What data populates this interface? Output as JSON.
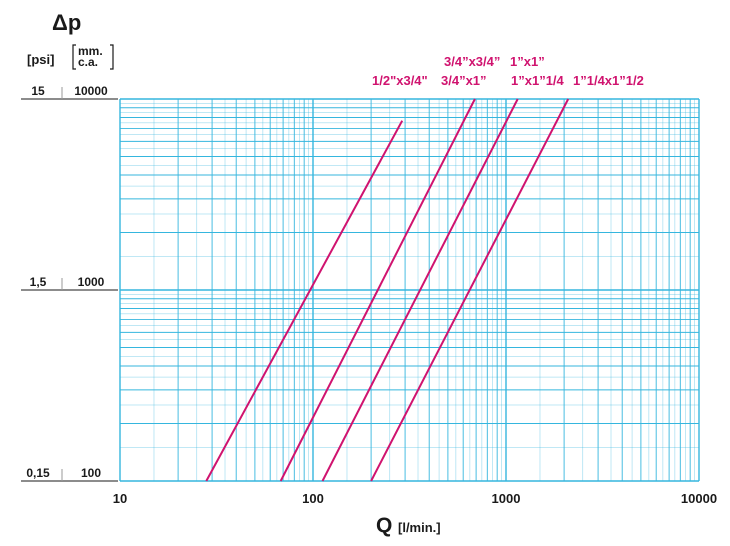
{
  "chart_data": {
    "type": "line",
    "title": "Δp",
    "xlabel": "Q",
    "xlabel_unit": "[l/min.]",
    "x_scale": "log",
    "y_scale": "log",
    "xlim": [
      10,
      10000
    ],
    "ylim": [
      100,
      10000
    ],
    "x_ticks": [
      "10",
      "100",
      "1000",
      "10000"
    ],
    "y_units": {
      "psi": "[psi]",
      "mmca_top": "mm.",
      "mmca_bottom": "c.a."
    },
    "y_ticks": [
      {
        "psi": "15",
        "mmca": "10000",
        "value": 10000
      },
      {
        "psi": "1,5",
        "mmca": "1000",
        "value": 1000
      },
      {
        "psi": "0,15",
        "mmca": "100",
        "value": 100
      }
    ],
    "grid": true,
    "series": [
      {
        "name": "1/2\"x3/4\"",
        "x": [
          28,
          290
        ],
        "y": [
          100,
          7700
        ]
      },
      {
        "name": "3/4\"x3/4\" 3/4\"x1\"",
        "x": [
          68,
          690
        ],
        "y": [
          100,
          10000
        ]
      },
      {
        "name": "1\"x1\" 1\"x1\"1/4",
        "x": [
          112,
          1150
        ],
        "y": [
          100,
          10000
        ]
      },
      {
        "name": "1\"1/4x1\"1/2",
        "x": [
          200,
          2100
        ],
        "y": [
          100,
          10000
        ]
      }
    ]
  },
  "colors": {
    "grid": "#35b6de",
    "curve": "#d0136f",
    "text": "#1a1a1a"
  }
}
